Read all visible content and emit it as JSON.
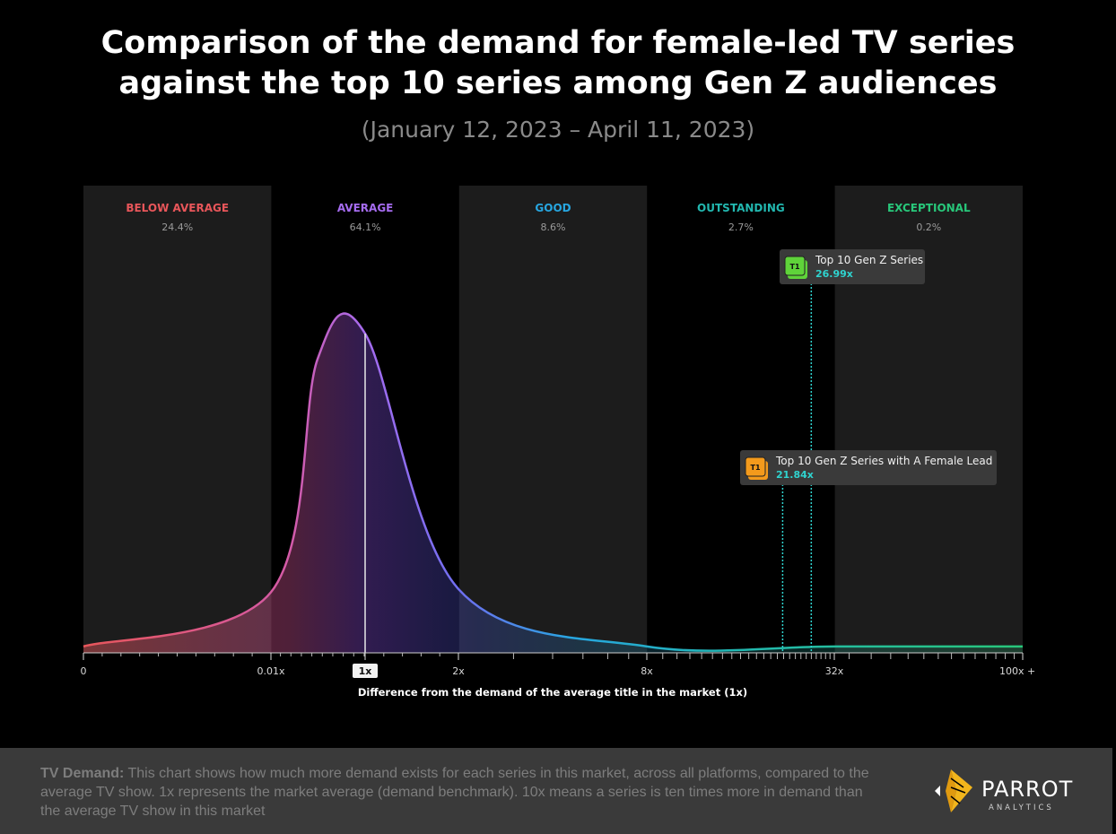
{
  "title_line1": "Comparison of the demand for female-led TV series",
  "title_line2": "against the top 10 series among Gen Z audiences",
  "subtitle": "(January 12, 2023 – April 11, 2023)",
  "colors": {
    "below_average": "#e8565a",
    "average": "#a66cf0",
    "good": "#27a6e0",
    "outstanding": "#22b8b0",
    "exceptional": "#28c77a",
    "marker_line": "#2fd3cf",
    "badge_green": "#5fd33a",
    "badge_orange": "#f39a1c"
  },
  "chart_data": {
    "type": "area",
    "xlabel": "Difference from the demand of the average title in the market (1x)",
    "x_ticks": [
      "0",
      "0.01x",
      "1x",
      "2x",
      "8x",
      "32x",
      "100x +"
    ],
    "highlighted_tick": "1x",
    "bands": [
      {
        "name": "BELOW AVERAGE",
        "pct": "24.4%",
        "color": "#e8565a"
      },
      {
        "name": "AVERAGE",
        "pct": "64.1%",
        "color": "#a66cf0"
      },
      {
        "name": "GOOD",
        "pct": "8.6%",
        "color": "#27a6e0"
      },
      {
        "name": "OUTSTANDING",
        "pct": "2.7%",
        "color": "#22b8b0"
      },
      {
        "name": "EXCEPTIONAL",
        "pct": "0.2%",
        "color": "#28c77a"
      }
    ],
    "distribution": [
      {
        "x": 0,
        "y": 0.02
      },
      {
        "x": 0.01,
        "y": 0.19
      },
      {
        "x": 0.5,
        "y": 0.92
      },
      {
        "x": 1,
        "y": 1.0
      },
      {
        "x": 2,
        "y": 0.2
      },
      {
        "x": 8,
        "y": 0.02
      },
      {
        "x": 32,
        "y": 0.02
      },
      {
        "x": 100,
        "y": 0.02
      }
    ],
    "markers": [
      {
        "label": "Top 10 Gen Z Series",
        "value": 26.99,
        "value_label": "26.99x",
        "badge": "T1",
        "badge_color": "#5fd33a"
      },
      {
        "label": "Top 10 Gen Z Series with A Female Lead",
        "value": 21.84,
        "value_label": "21.84x",
        "badge": "T1",
        "badge_color": "#f39a1c"
      }
    ]
  },
  "footer": {
    "lead": "TV Demand:",
    "text": " This chart shows how much more demand exists for each series in this market, across all platforms, compared to the average TV show. 1x represents the market average (demand benchmark). 10x means a series is ten times more in demand than the average TV show in this market"
  },
  "logo": {
    "word": "PARROT",
    "sub": "ANALYTICS"
  }
}
